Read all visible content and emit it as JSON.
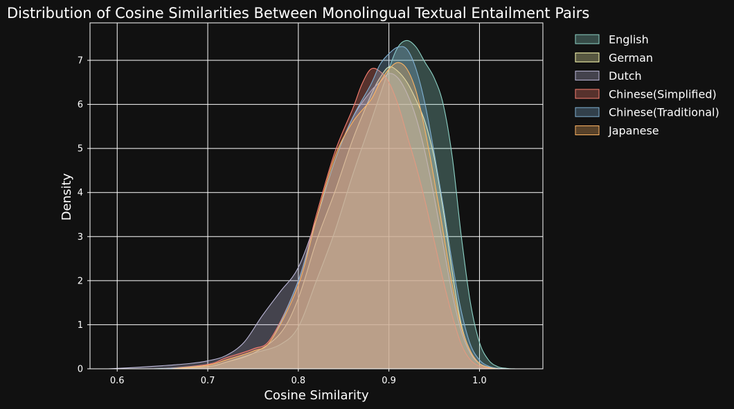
{
  "chart_data": {
    "type": "area",
    "title": "Distribution of Cosine Similarities Between Monolingual Textual Entailment Pairs",
    "xlabel": "Cosine Similarity",
    "ylabel": "Density",
    "xlim": [
      0.57,
      1.07
    ],
    "ylim": [
      0,
      7.85
    ],
    "xticks": [
      "0.6",
      "0.7",
      "0.8",
      "0.9",
      "1.0"
    ],
    "xtick_values": [
      0.6,
      0.7,
      0.8,
      0.9,
      1.0
    ],
    "yticks": [
      "0",
      "1",
      "2",
      "3",
      "4",
      "5",
      "6",
      "7"
    ],
    "ytick_values": [
      0,
      1,
      2,
      3,
      4,
      5,
      6,
      7
    ],
    "grid": true,
    "legend_position": "outside-right-top",
    "series": [
      {
        "name": "English",
        "color": "#8dd3c7",
        "x": [
          0.64,
          0.7,
          0.72,
          0.75,
          0.78,
          0.8,
          0.82,
          0.84,
          0.86,
          0.88,
          0.9,
          0.91,
          0.92,
          0.93,
          0.94,
          0.95,
          0.96,
          0.97,
          0.98,
          0.99,
          1.0,
          1.01,
          1.02,
          1.03,
          1.04
        ],
        "y": [
          0.0,
          0.05,
          0.15,
          0.35,
          0.55,
          0.95,
          2.0,
          3.1,
          4.4,
          5.6,
          6.8,
          7.3,
          7.45,
          7.3,
          6.95,
          6.6,
          6.0,
          4.8,
          3.0,
          1.5,
          0.6,
          0.2,
          0.05,
          0.01,
          0.0
        ]
      },
      {
        "name": "German",
        "color": "#ffffb3",
        "x": [
          0.66,
          0.7,
          0.72,
          0.75,
          0.78,
          0.8,
          0.82,
          0.84,
          0.86,
          0.88,
          0.89,
          0.9,
          0.91,
          0.92,
          0.93,
          0.94,
          0.95,
          0.96,
          0.97,
          0.98,
          0.99,
          1.0,
          1.01,
          1.02,
          1.03
        ],
        "y": [
          0.0,
          0.05,
          0.15,
          0.35,
          0.8,
          1.6,
          2.9,
          4.0,
          5.2,
          6.2,
          6.6,
          6.85,
          6.75,
          6.5,
          6.1,
          5.6,
          4.8,
          3.6,
          2.2,
          1.0,
          0.4,
          0.12,
          0.03,
          0.01,
          0.0
        ]
      },
      {
        "name": "Dutch",
        "color": "#bebada",
        "x": [
          0.59,
          0.62,
          0.65,
          0.68,
          0.7,
          0.72,
          0.74,
          0.76,
          0.78,
          0.8,
          0.82,
          0.84,
          0.86,
          0.88,
          0.89,
          0.9,
          0.91,
          0.92,
          0.93,
          0.94,
          0.95,
          0.96,
          0.97,
          0.98,
          0.99,
          1.0,
          1.01,
          1.02,
          1.03
        ],
        "y": [
          0.0,
          0.03,
          0.07,
          0.12,
          0.18,
          0.3,
          0.6,
          1.2,
          1.75,
          2.3,
          3.4,
          4.7,
          5.7,
          6.3,
          6.5,
          6.7,
          6.6,
          6.25,
          5.7,
          4.9,
          3.9,
          2.8,
          1.7,
          0.85,
          0.35,
          0.12,
          0.04,
          0.01,
          0.0
        ]
      },
      {
        "name": "Chinese(Simplified)",
        "color": "#fb8072",
        "x": [
          0.65,
          0.7,
          0.72,
          0.75,
          0.77,
          0.8,
          0.82,
          0.84,
          0.86,
          0.87,
          0.88,
          0.89,
          0.9,
          0.91,
          0.92,
          0.93,
          0.94,
          0.95,
          0.96,
          0.97,
          0.98,
          0.99,
          1.0,
          1.01,
          1.02
        ],
        "y": [
          0.0,
          0.1,
          0.25,
          0.45,
          0.7,
          2.0,
          3.5,
          4.9,
          5.9,
          6.45,
          6.8,
          6.75,
          6.5,
          6.0,
          5.3,
          4.6,
          3.8,
          2.9,
          2.0,
          1.2,
          0.55,
          0.2,
          0.06,
          0.01,
          0.0
        ]
      },
      {
        "name": "Chinese(Traditional)",
        "color": "#80b1d3",
        "x": [
          0.65,
          0.7,
          0.72,
          0.75,
          0.77,
          0.8,
          0.82,
          0.84,
          0.86,
          0.88,
          0.89,
          0.9,
          0.91,
          0.92,
          0.93,
          0.94,
          0.95,
          0.96,
          0.97,
          0.98,
          0.99,
          1.0,
          1.01,
          1.02,
          1.03
        ],
        "y": [
          0.0,
          0.08,
          0.2,
          0.4,
          0.65,
          2.0,
          3.4,
          4.7,
          5.7,
          6.45,
          6.9,
          7.15,
          7.3,
          7.25,
          6.8,
          6.0,
          4.9,
          3.7,
          2.4,
          1.3,
          0.55,
          0.2,
          0.06,
          0.01,
          0.0
        ]
      },
      {
        "name": "Japanese",
        "color": "#fdb462",
        "x": [
          0.66,
          0.7,
          0.72,
          0.75,
          0.77,
          0.8,
          0.82,
          0.84,
          0.86,
          0.88,
          0.89,
          0.9,
          0.91,
          0.92,
          0.93,
          0.94,
          0.95,
          0.96,
          0.97,
          0.98,
          0.99,
          1.0,
          1.01,
          1.02
        ],
        "y": [
          0.0,
          0.08,
          0.2,
          0.4,
          0.65,
          1.9,
          3.4,
          4.8,
          5.6,
          6.1,
          6.5,
          6.8,
          6.95,
          6.8,
          6.3,
          5.4,
          4.3,
          3.1,
          1.9,
          0.95,
          0.4,
          0.12,
          0.03,
          0.0
        ]
      }
    ]
  }
}
